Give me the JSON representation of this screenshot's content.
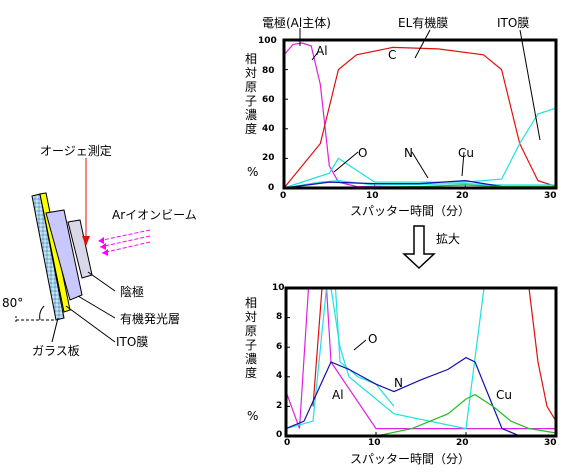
{
  "left_diagram": {
    "auger_label": "オージェ測定",
    "ion_beam_label": "Arイオンビーム",
    "angle_label": "80°",
    "cathode_label": "陰極",
    "organic_layer_label": "有機発光層",
    "ito_label": "ITO膜",
    "glass_label": "ガラス板"
  },
  "arrow_label": "拡大",
  "top_chart": {
    "ylabel": "相対原子濃度",
    "unit": "%",
    "xlabel": "スパッター時間（分）",
    "xticks": [
      "0",
      "10",
      "20",
      "30"
    ],
    "yticks": [
      "100",
      "80",
      "60",
      "40",
      "20",
      "0"
    ],
    "annotations": {
      "electrode": "電極(Al主体)",
      "al": "Al",
      "el": "EL有機膜",
      "c": "C",
      "ito": "ITO膜",
      "o": "O",
      "n": "N",
      "cu": "Cu"
    }
  },
  "bottom_chart": {
    "ylabel": "相対原子濃度",
    "unit": "%",
    "xlabel": "スパッター時間（分）",
    "xticks": [
      "0",
      "10",
      "20",
      "30"
    ],
    "yticks": [
      "10",
      "8",
      "6",
      "4",
      "2",
      "0"
    ],
    "annotations": {
      "o": "O",
      "al": "Al",
      "n": "N",
      "cu": "Cu"
    }
  },
  "colors": {
    "al": "#e020e0",
    "c": "#e01010",
    "ito": "#20e0e0",
    "n": "#1010b0",
    "cu": "#20c020",
    "glass": "#90c8e8",
    "yellow": "#ffff00",
    "beam": "#ff00ff"
  },
  "chart_data": [
    {
      "type": "line",
      "x_units": "min",
      "xlim": [
        0,
        30
      ],
      "ylim": [
        0,
        100
      ],
      "series": [
        {
          "name": "Al",
          "x": [
            0,
            1,
            2,
            3,
            4,
            5,
            6,
            8,
            30
          ],
          "values": [
            90,
            97,
            98,
            96,
            70,
            15,
            4,
            1,
            0
          ]
        },
        {
          "name": "C",
          "x": [
            0,
            4,
            6,
            8,
            12,
            17,
            22,
            24,
            26,
            28,
            30
          ],
          "values": [
            0,
            30,
            80,
            90,
            95,
            94,
            90,
            80,
            30,
            5,
            1
          ]
        },
        {
          "name": "ITO膜",
          "x": [
            0,
            5,
            6,
            10,
            20,
            24,
            26,
            28,
            30
          ],
          "values": [
            0,
            10,
            20,
            4,
            4,
            6,
            30,
            50,
            54
          ]
        },
        {
          "name": "O",
          "x": [
            0,
            4,
            6,
            10,
            20,
            24,
            30
          ],
          "values": [
            0,
            4,
            5,
            2,
            3,
            2,
            2
          ]
        },
        {
          "name": "N",
          "x": [
            0,
            5,
            10,
            15,
            20,
            24,
            30
          ],
          "values": [
            0,
            4,
            3,
            3,
            5,
            1,
            0
          ]
        },
        {
          "name": "Cu",
          "x": [
            0,
            15,
            20,
            24,
            30
          ],
          "values": [
            0,
            1,
            2,
            1,
            1
          ]
        }
      ]
    },
    {
      "type": "line",
      "x_units": "min",
      "xlim": [
        0,
        30
      ],
      "ylim": [
        0,
        10
      ],
      "series": [
        {
          "name": "Al",
          "x": [
            0,
            1.5,
            2.5,
            3,
            4,
            4.5,
            5,
            10,
            30
          ],
          "values": [
            3,
            0.5,
            10,
            10,
            10,
            10,
            5,
            0.5,
            0.5
          ]
        },
        {
          "name": "C",
          "x": [
            3,
            3.5,
            4,
            27,
            28,
            29,
            30
          ],
          "values": [
            2,
            6,
            10,
            10,
            5,
            2,
            1
          ]
        },
        {
          "name": "ITO膜",
          "x": [
            0,
            3,
            5,
            6,
            7,
            9,
            10,
            12,
            20,
            22,
            30
          ],
          "values": [
            10,
            10,
            10,
            6,
            4,
            3,
            2.5,
            1.5,
            0.5,
            10,
            10
          ]
        },
        {
          "name": "O",
          "x": [
            0,
            3,
            4.5,
            5.5,
            6,
            8,
            10,
            12
          ],
          "values": [
            0.5,
            1,
            10,
            10,
            5,
            4,
            3.5,
            2
          ]
        },
        {
          "name": "N",
          "x": [
            0,
            2,
            3.5,
            5,
            7,
            10,
            12,
            15,
            18,
            20,
            21,
            23,
            24,
            26,
            30
          ],
          "values": [
            0.5,
            1,
            3,
            5,
            4.5,
            3.5,
            3,
            3.8,
            4.5,
            5.3,
            5,
            2,
            0.5,
            0,
            0
          ]
        },
        {
          "name": "Cu",
          "x": [
            0,
            10,
            14,
            18,
            20,
            21,
            23,
            25,
            27,
            30
          ],
          "values": [
            0,
            0,
            0.5,
            1.5,
            2.5,
            2.8,
            2,
            1,
            0.5,
            0.2
          ]
        }
      ]
    }
  ]
}
